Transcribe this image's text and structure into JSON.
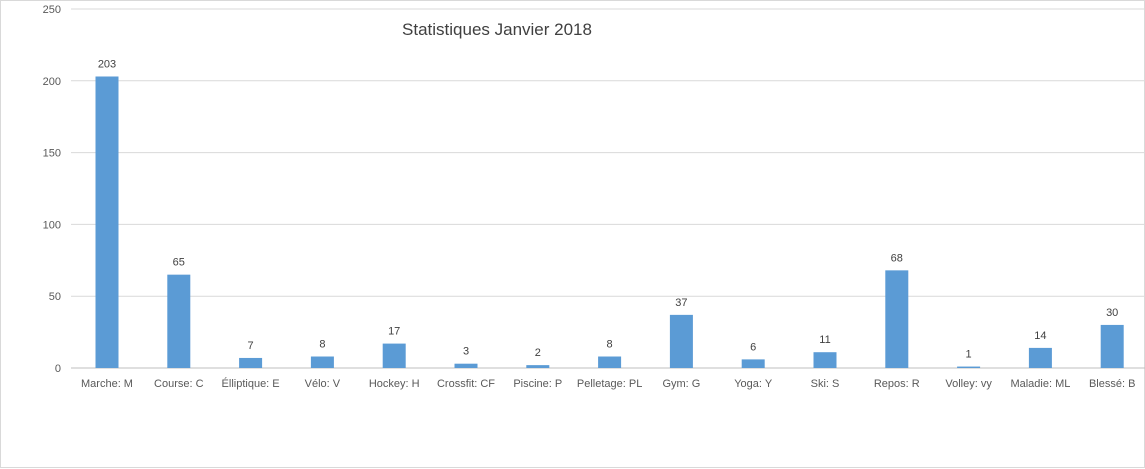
{
  "chart_data": {
    "type": "bar",
    "title": "Statistiques Janvier 2018",
    "xlabel": "",
    "ylabel": "",
    "ylim": [
      0,
      250
    ],
    "yticks": [
      0,
      50,
      100,
      150,
      200,
      250
    ],
    "grid": true,
    "bar_color": "#5b9bd5",
    "categories": [
      "Marche: M",
      "Course: C",
      "Élliptique: E",
      "Vélo: V",
      "Hockey: H",
      "Crossfit: CF",
      "Piscine: P",
      "Pelletage: PL",
      "Gym: G",
      "Yoga: Y",
      "Ski: S",
      "Repos: R",
      "Volley: vy",
      "Maladie: ML",
      "Blessé: B"
    ],
    "values": [
      203,
      65,
      7,
      8,
      17,
      3,
      2,
      8,
      37,
      6,
      11,
      68,
      1,
      14,
      30
    ]
  }
}
